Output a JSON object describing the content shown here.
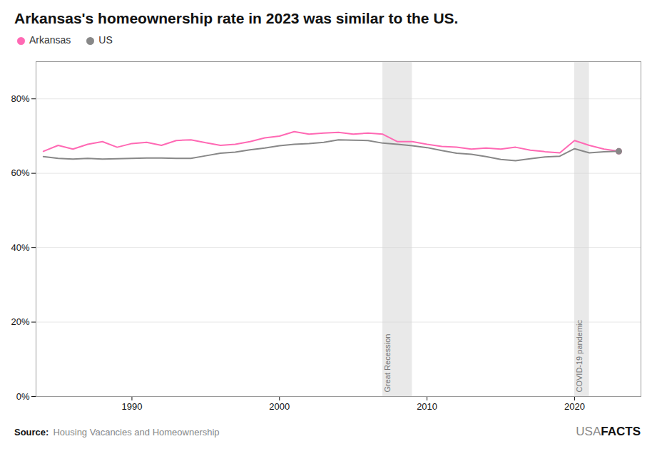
{
  "chart_data": {
    "type": "line",
    "title": "Arkansas's homeownership rate in 2023 was similar to the US.",
    "x": [
      1984,
      1985,
      1986,
      1987,
      1988,
      1989,
      1990,
      1991,
      1992,
      1993,
      1994,
      1995,
      1996,
      1997,
      1998,
      1999,
      2000,
      2001,
      2002,
      2003,
      2004,
      2005,
      2006,
      2007,
      2008,
      2009,
      2010,
      2011,
      2012,
      2013,
      2014,
      2015,
      2016,
      2017,
      2018,
      2019,
      2020,
      2021,
      2022,
      2023
    ],
    "series": [
      {
        "name": "Arkansas",
        "color": "#FF69B4",
        "values": [
          65.9,
          67.5,
          66.5,
          67.8,
          68.5,
          67.0,
          68.0,
          68.3,
          67.5,
          68.8,
          69.0,
          68.2,
          67.5,
          67.8,
          68.5,
          69.5,
          70.0,
          71.2,
          70.5,
          70.8,
          71.0,
          70.5,
          70.8,
          70.5,
          68.5,
          68.5,
          67.8,
          67.2,
          67.0,
          66.5,
          66.8,
          66.5,
          67.0,
          66.2,
          65.8,
          65.5,
          68.8,
          67.5,
          66.5,
          65.9
        ]
      },
      {
        "name": "US",
        "color": "#888888",
        "values": [
          64.5,
          64.0,
          63.8,
          64.0,
          63.8,
          63.9,
          64.0,
          64.1,
          64.1,
          64.0,
          64.0,
          64.7,
          65.4,
          65.7,
          66.3,
          66.8,
          67.4,
          67.8,
          68.0,
          68.3,
          69.0,
          68.9,
          68.8,
          68.1,
          67.8,
          67.4,
          66.9,
          66.1,
          65.4,
          65.1,
          64.5,
          63.7,
          63.4,
          63.9,
          64.4,
          64.6,
          66.6,
          65.5,
          65.8,
          65.9
        ]
      }
    ],
    "xlim": [
      1983.5,
      2024.5
    ],
    "xticks": [
      1990,
      2000,
      2010,
      2020
    ],
    "ylim": [
      0,
      90
    ],
    "yticks": [
      {
        "value": 0,
        "label": "0%"
      },
      {
        "value": 20,
        "label": "20%"
      },
      {
        "value": 40,
        "label": "40%"
      },
      {
        "value": 60,
        "label": "60%"
      },
      {
        "value": 80,
        "label": "80%"
      }
    ],
    "grid": true,
    "legend": "top",
    "annotations": [
      {
        "text": "Great Recession",
        "x_start": 2007,
        "x_end": 2009,
        "color": "#d3d3d3"
      },
      {
        "text": "COVID-19 pandemic",
        "x_start": 2020,
        "x_end": 2021,
        "color": "#d3d3d3"
      }
    ],
    "source_label": "Source:",
    "source": "Housing Vacancies and Homeownership",
    "brand": [
      "USA",
      "FACTS"
    ]
  }
}
